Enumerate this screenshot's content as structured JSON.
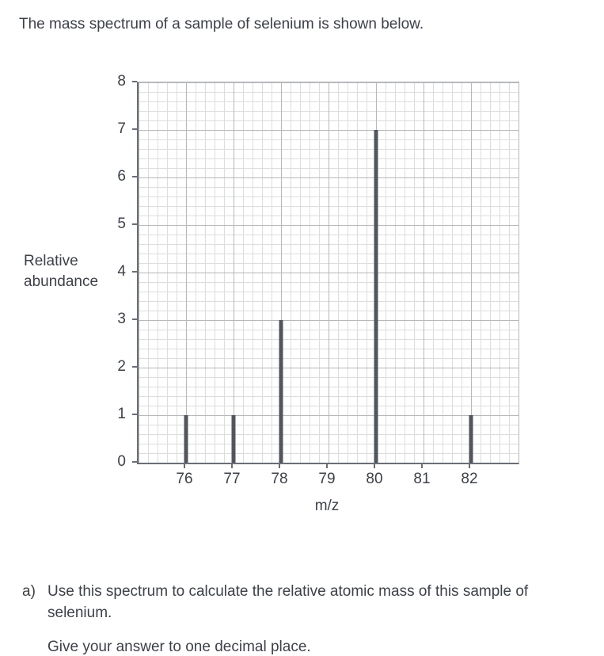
{
  "page": {
    "title": "The mass spectrum of a sample of selenium is shown below."
  },
  "chart_data": {
    "type": "bar",
    "subtype": "mass-spectrum-stick-plot",
    "title": "",
    "xlabel": "m/z",
    "ylabel": "Relative abundance",
    "x": [
      76,
      77,
      78,
      80,
      82
    ],
    "values": [
      1,
      1,
      3,
      7,
      1
    ],
    "xlim": [
      75,
      83
    ],
    "ylim": [
      0,
      8
    ],
    "x_ticks": [
      76,
      77,
      78,
      79,
      80,
      81,
      82
    ],
    "y_ticks": [
      0,
      1,
      2,
      3,
      4,
      5,
      6,
      7,
      8
    ],
    "grid": "graph-paper: 5 minor squares per major division",
    "legend": "none"
  },
  "question": {
    "label": "a)",
    "text": "Use this spectrum to calculate the relative atomic mass of this sample of selenium.",
    "note": "Give your answer to one decimal place."
  },
  "colors": {
    "text": "#3d4148",
    "bar": "#51555e",
    "axis": "#6a6e76",
    "grid_minor": "#dcdddf",
    "grid_major": "#b6b8bc",
    "background": "#ffffff"
  }
}
